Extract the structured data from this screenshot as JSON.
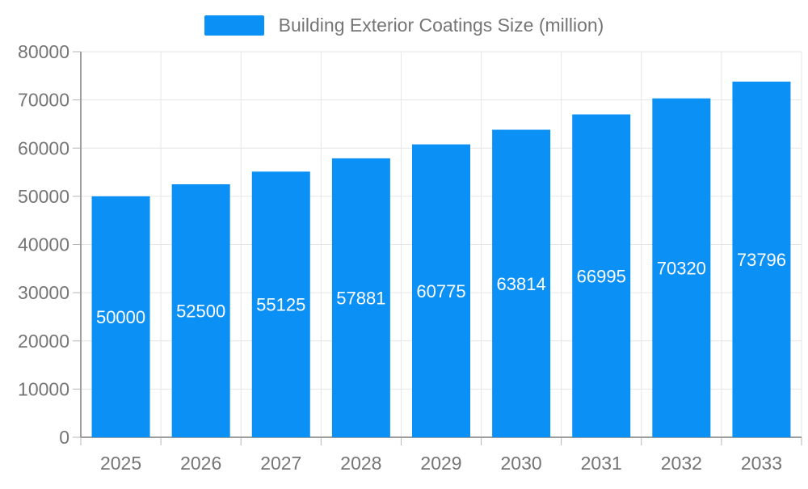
{
  "legend": {
    "label": "Building Exterior Coatings Size (million)"
  },
  "chart_data": {
    "type": "bar",
    "title": "Building Exterior Coatings Size (million)",
    "categories": [
      "2025",
      "2026",
      "2027",
      "2028",
      "2029",
      "2030",
      "2031",
      "2032",
      "2033"
    ],
    "series": [
      {
        "name": "Building Exterior Coatings Size (million)",
        "values": [
          50000,
          52500,
          55125,
          57881,
          60775,
          63814,
          66995,
          70320,
          73796
        ]
      }
    ],
    "xlabel": "",
    "ylabel": "",
    "ylim": [
      0,
      80000
    ],
    "ytick_step": 10000,
    "grid": true,
    "legend_position": "top",
    "bar_labels_inside": true
  },
  "colors": {
    "bar": "#0b90f5",
    "bar_label": "#ffffff",
    "axis_line": "#9e9e9e",
    "tick_mark": "#b5b5b5",
    "gridline": "#e6e6e6",
    "tick_text": "#757575"
  }
}
